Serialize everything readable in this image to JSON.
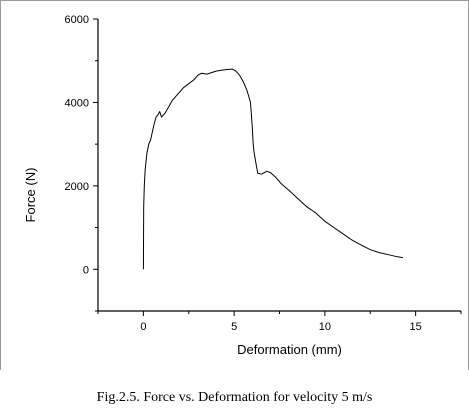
{
  "caption": "Fig.2.5. Force vs. Deformation for velocity 5 m/s",
  "chart_data": {
    "type": "line",
    "title": "",
    "xlabel": "Deformation (mm)",
    "ylabel": "Force (N)",
    "xlim": [
      -2.5,
      17.5
    ],
    "ylim": [
      -1000,
      6000
    ],
    "xticks": [
      0,
      5,
      10,
      15
    ],
    "xtick_labels": [
      "0",
      "5",
      "10",
      "15"
    ],
    "yticks": [
      0,
      2000,
      4000,
      6000
    ],
    "ytick_labels": [
      "0",
      "2000",
      "4000",
      "6000"
    ],
    "grid": false,
    "legend": "none",
    "line_color": "#000000",
    "series": [
      {
        "x": [
          0.0,
          0.02,
          0.05,
          0.1,
          0.15,
          0.2,
          0.3,
          0.4,
          0.5,
          0.6,
          0.7,
          0.8,
          0.9,
          1.0,
          1.2,
          1.4,
          1.6,
          1.8,
          2.0,
          2.2,
          2.5,
          2.8,
          3.0,
          3.2,
          3.5,
          3.8,
          4.0,
          4.3,
          4.6,
          4.9,
          5.1,
          5.3,
          5.5,
          5.7,
          5.9,
          6.0,
          6.05,
          6.1,
          6.2,
          6.3,
          6.5,
          6.8,
          7.0,
          7.3,
          7.6,
          8.0,
          8.5,
          9.0,
          9.5,
          10.0,
          10.5,
          11.0,
          11.5,
          12.0,
          12.5,
          13.0,
          13.5,
          14.0,
          14.3
        ],
        "y": [
          0,
          1500,
          2000,
          2400,
          2600,
          2800,
          3000,
          3100,
          3300,
          3500,
          3650,
          3700,
          3780,
          3650,
          3750,
          3900,
          4050,
          4150,
          4250,
          4350,
          4450,
          4550,
          4650,
          4700,
          4680,
          4720,
          4750,
          4770,
          4790,
          4800,
          4750,
          4650,
          4500,
          4300,
          4000,
          3400,
          3000,
          2800,
          2550,
          2300,
          2280,
          2350,
          2320,
          2200,
          2050,
          1900,
          1700,
          1500,
          1350,
          1150,
          1000,
          850,
          700,
          580,
          470,
          400,
          350,
          300,
          280
        ]
      }
    ]
  }
}
